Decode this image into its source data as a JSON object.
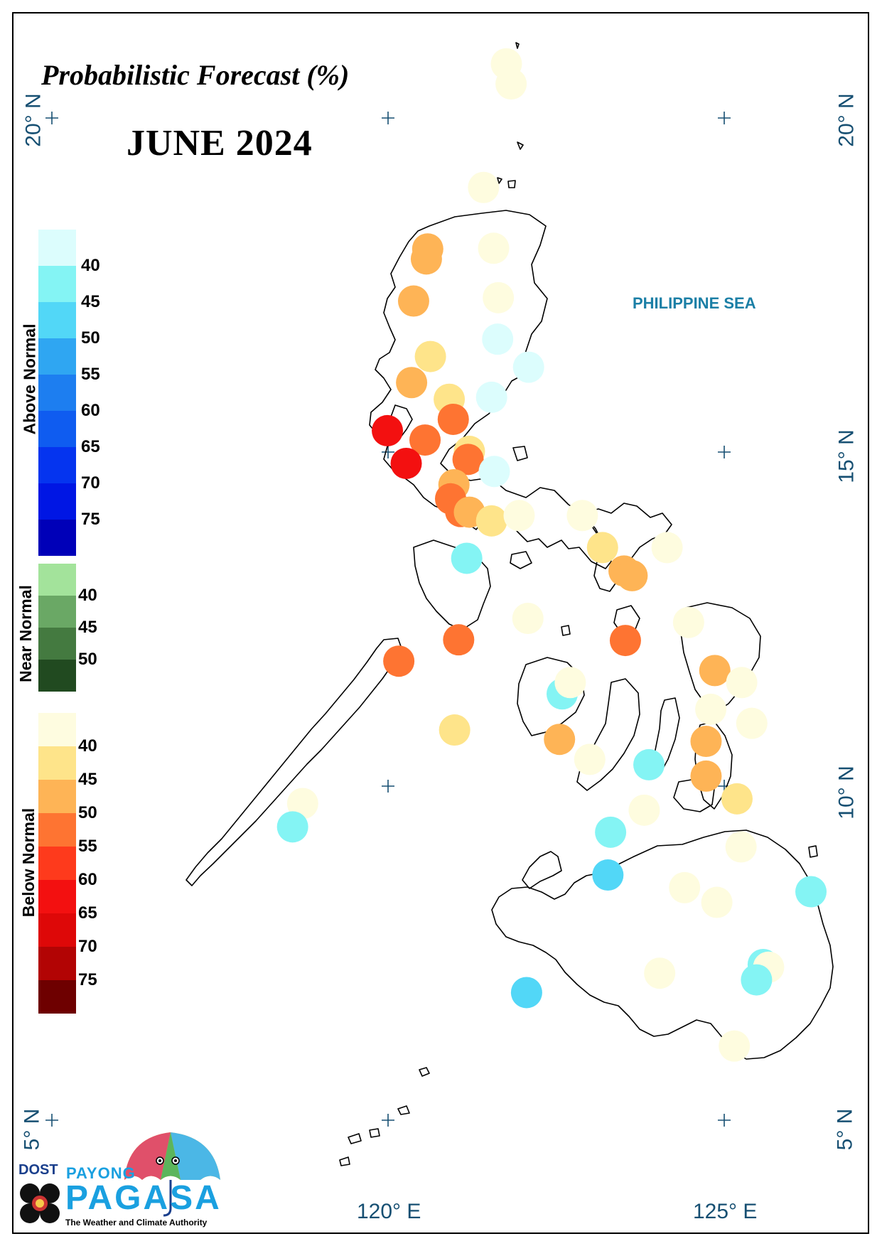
{
  "map": {
    "title": "Probabilistic Forecast (%)",
    "period": "JUNE 2024",
    "sea_label": "PHILIPPINE SEA",
    "lon_labels": [
      "120° E",
      "125° E"
    ],
    "lat_labels": [
      "20° N",
      "15° N",
      "10° N",
      "5° N"
    ]
  },
  "legend": {
    "groups": [
      {
        "name": "Above Normal",
        "ticks": [
          "40",
          "45",
          "50",
          "55",
          "60",
          "65",
          "70",
          "75"
        ],
        "colors": [
          "#dcfdfd",
          "#84f4f4",
          "#52d7f7",
          "#2fa6f2",
          "#1d7ef0",
          "#0f5cf0",
          "#0534ef",
          "#0016e4",
          "#0000b8"
        ]
      },
      {
        "name": "Near Normal",
        "ticks": [
          "40",
          "45",
          "50"
        ],
        "colors": [
          "#a3e39b",
          "#6aa865",
          "#447a40",
          "#214a20"
        ]
      },
      {
        "name": "Below Normal",
        "ticks": [
          "40",
          "45",
          "50",
          "55",
          "60",
          "65",
          "70",
          "75"
        ],
        "colors": [
          "#fefce0",
          "#fee48a",
          "#feb456",
          "#fe7432",
          "#fe3a1c",
          "#f31010",
          "#de0808",
          "#b20404",
          "#6e0000"
        ]
      }
    ]
  },
  "stations": [
    {
      "lon": 121.76,
      "lat": 20.81,
      "cat": "below",
      "color": "#fefcdf"
    },
    {
      "lon": 121.83,
      "lat": 20.51,
      "cat": "below",
      "color": "#fefcdf"
    },
    {
      "lon": 121.42,
      "lat": 18.96,
      "cat": "below",
      "color": "#fefcdf"
    },
    {
      "lon": 120.59,
      "lat": 18.04,
      "cat": "below",
      "color": "#feb456"
    },
    {
      "lon": 120.57,
      "lat": 17.89,
      "cat": "below",
      "color": "#feb456"
    },
    {
      "lon": 121.57,
      "lat": 18.05,
      "cat": "below",
      "color": "#fefcdf"
    },
    {
      "lon": 121.64,
      "lat": 17.31,
      "cat": "below",
      "color": "#fefcdf"
    },
    {
      "lon": 120.38,
      "lat": 17.26,
      "cat": "below",
      "color": "#feb456"
    },
    {
      "lon": 121.63,
      "lat": 16.69,
      "cat": "above",
      "color": "#dcfdfd"
    },
    {
      "lon": 120.63,
      "lat": 16.43,
      "cat": "below",
      "color": "#fee48a"
    },
    {
      "lon": 122.09,
      "lat": 16.27,
      "cat": "above",
      "color": "#dcfdfd"
    },
    {
      "lon": 120.35,
      "lat": 16.04,
      "cat": "below",
      "color": "#feb456"
    },
    {
      "lon": 121.54,
      "lat": 15.82,
      "cat": "above",
      "color": "#dcfdfd"
    },
    {
      "lon": 120.91,
      "lat": 15.79,
      "cat": "below",
      "color": "#fee48a"
    },
    {
      "lon": 120.97,
      "lat": 15.49,
      "cat": "below",
      "color": "#fe7432"
    },
    {
      "lon": 119.99,
      "lat": 15.32,
      "cat": "below",
      "color": "#f31010"
    },
    {
      "lon": 120.55,
      "lat": 15.18,
      "cat": "below",
      "color": "#fe7432"
    },
    {
      "lon": 121.21,
      "lat": 15.01,
      "cat": "below",
      "color": "#fee48a"
    },
    {
      "lon": 121.19,
      "lat": 14.89,
      "cat": "below",
      "color": "#fe7432"
    },
    {
      "lon": 120.27,
      "lat": 14.83,
      "cat": "below",
      "color": "#f31010"
    },
    {
      "lon": 121.58,
      "lat": 14.71,
      "cat": "above",
      "color": "#dcfdfd"
    },
    {
      "lon": 120.98,
      "lat": 14.51,
      "cat": "below",
      "color": "#feb456"
    },
    {
      "lon": 120.93,
      "lat": 14.3,
      "cat": "below",
      "color": "#fe7432"
    },
    {
      "lon": 121.08,
      "lat": 14.11,
      "cat": "below",
      "color": "#fe7432"
    },
    {
      "lon": 121.21,
      "lat": 14.1,
      "cat": "below",
      "color": "#feb456"
    },
    {
      "lon": 121.54,
      "lat": 13.97,
      "cat": "below",
      "color": "#fee48a"
    },
    {
      "lon": 121.95,
      "lat": 14.05,
      "cat": "below",
      "color": "#fefcdf"
    },
    {
      "lon": 122.89,
      "lat": 14.05,
      "cat": "below",
      "color": "#fefcdf"
    },
    {
      "lon": 123.19,
      "lat": 13.57,
      "cat": "below",
      "color": "#fee48a"
    },
    {
      "lon": 124.15,
      "lat": 13.57,
      "cat": "below",
      "color": "#fefcdf"
    },
    {
      "lon": 123.51,
      "lat": 13.22,
      "cat": "below",
      "color": "#feb456"
    },
    {
      "lon": 123.63,
      "lat": 13.15,
      "cat": "below",
      "color": "#feb456"
    },
    {
      "lon": 121.17,
      "lat": 13.41,
      "cat": "above",
      "color": "#84f4f4"
    },
    {
      "lon": 122.08,
      "lat": 12.51,
      "cat": "below",
      "color": "#fefcdf"
    },
    {
      "lon": 123.53,
      "lat": 12.18,
      "cat": "below",
      "color": "#fe7432"
    },
    {
      "lon": 124.47,
      "lat": 12.45,
      "cat": "below",
      "color": "#fefcdf"
    },
    {
      "lon": 121.05,
      "lat": 12.19,
      "cat": "below",
      "color": "#fe7432"
    },
    {
      "lon": 120.16,
      "lat": 11.87,
      "cat": "below",
      "color": "#fe7432"
    },
    {
      "lon": 124.86,
      "lat": 11.73,
      "cat": "below",
      "color": "#feb456"
    },
    {
      "lon": 125.26,
      "lat": 11.55,
      "cat": "below",
      "color": "#fefcdf"
    },
    {
      "lon": 122.59,
      "lat": 11.38,
      "cat": "above",
      "color": "#84f4f4"
    },
    {
      "lon": 122.71,
      "lat": 11.55,
      "cat": "below",
      "color": "#fefcdf"
    },
    {
      "lon": 124.8,
      "lat": 11.15,
      "cat": "below",
      "color": "#fefcdf"
    },
    {
      "lon": 125.41,
      "lat": 10.94,
      "cat": "below",
      "color": "#fefcdf"
    },
    {
      "lon": 120.99,
      "lat": 10.84,
      "cat": "below",
      "color": "#fee48a"
    },
    {
      "lon": 122.55,
      "lat": 10.7,
      "cat": "below",
      "color": "#feb456"
    },
    {
      "lon": 124.73,
      "lat": 10.67,
      "cat": "below",
      "color": "#feb456"
    },
    {
      "lon": 123.0,
      "lat": 10.4,
      "cat": "below",
      "color": "#fefcdf"
    },
    {
      "lon": 123.88,
      "lat": 10.32,
      "cat": "above",
      "color": "#84f4f4"
    },
    {
      "lon": 124.73,
      "lat": 10.15,
      "cat": "below",
      "color": "#feb456"
    },
    {
      "lon": 125.19,
      "lat": 9.81,
      "cat": "below",
      "color": "#fee48a"
    },
    {
      "lon": 118.73,
      "lat": 9.74,
      "cat": "below",
      "color": "#fefcdf"
    },
    {
      "lon": 118.58,
      "lat": 9.39,
      "cat": "above",
      "color": "#84f4f4"
    },
    {
      "lon": 123.81,
      "lat": 9.64,
      "cat": "below",
      "color": "#fefcdf"
    },
    {
      "lon": 123.31,
      "lat": 9.31,
      "cat": "above",
      "color": "#84f4f4"
    },
    {
      "lon": 125.25,
      "lat": 9.09,
      "cat": "below",
      "color": "#fefcdf"
    },
    {
      "lon": 123.27,
      "lat": 8.67,
      "cat": "above",
      "color": "#52d7f7"
    },
    {
      "lon": 124.41,
      "lat": 8.48,
      "cat": "below",
      "color": "#fefcdf"
    },
    {
      "lon": 126.29,
      "lat": 8.42,
      "cat": "above",
      "color": "#84f4f4"
    },
    {
      "lon": 124.89,
      "lat": 8.26,
      "cat": "below",
      "color": "#fefcdf"
    },
    {
      "lon": 125.58,
      "lat": 7.33,
      "cat": "above",
      "color": "#84f4f4"
    },
    {
      "lon": 125.66,
      "lat": 7.29,
      "cat": "below",
      "color": "#fefcdf"
    },
    {
      "lon": 124.04,
      "lat": 7.2,
      "cat": "below",
      "color": "#fefcdf"
    },
    {
      "lon": 125.48,
      "lat": 7.1,
      "cat": "above",
      "color": "#84f4f4"
    },
    {
      "lon": 122.06,
      "lat": 6.91,
      "cat": "above",
      "color": "#52d7f7"
    },
    {
      "lon": 125.15,
      "lat": 6.11,
      "cat": "below",
      "color": "#fefcdf"
    }
  ],
  "logo": {
    "agency": "DOST",
    "program": "PAYONG",
    "name": "PAGASA",
    "tagline": "The Weather and Climate Authority"
  }
}
